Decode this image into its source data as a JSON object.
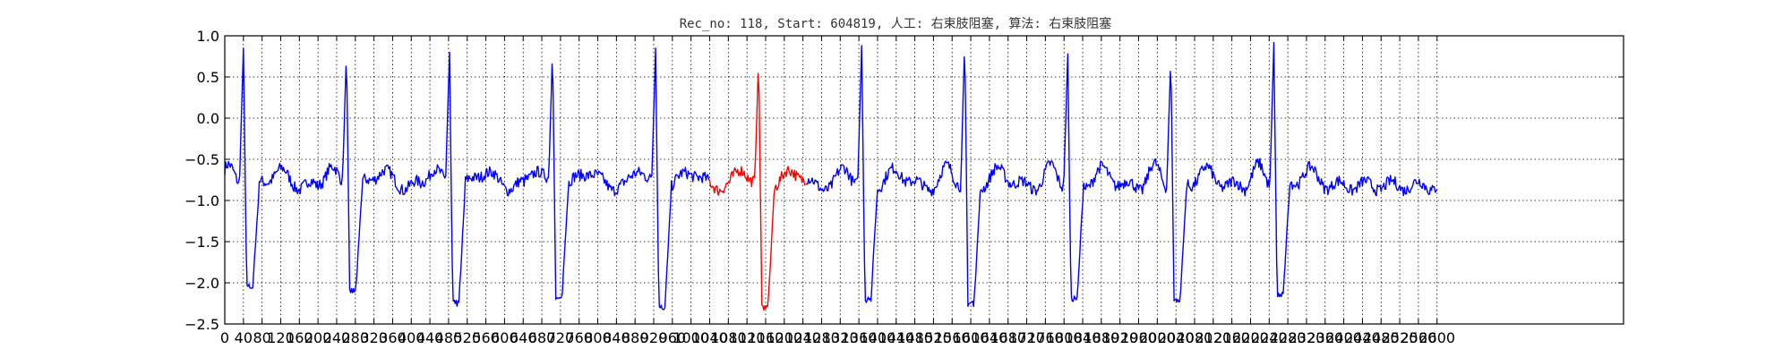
{
  "chart_data": {
    "type": "line",
    "title": "Rec_no: 118, Start: 604819, 人工: 右束肢阻塞, 算法: 右束肢阻塞",
    "xlabel": "",
    "ylabel": "",
    "xlim": [
      0,
      3000
    ],
    "ylim": [
      -2.5,
      1.0
    ],
    "yticks": [
      1.0,
      0.5,
      0.0,
      -0.5,
      -1.0,
      -1.5,
      -2.0,
      -2.5
    ],
    "ytick_labels": [
      "1.0",
      "0.5",
      "0.0",
      "−0.5",
      "−1.0",
      "−1.5",
      "−2.0",
      "−2.5"
    ],
    "xticks": [
      0,
      40,
      80,
      120,
      160,
      200,
      240,
      280,
      320,
      360,
      400,
      440,
      480,
      520,
      560,
      600,
      640,
      680,
      720,
      760,
      800,
      840,
      880,
      920,
      960,
      1000,
      1040,
      1080,
      1120,
      1160,
      1200,
      1240,
      1280,
      1320,
      1360,
      1400,
      1440,
      1480,
      1520,
      1560,
      1600,
      1640,
      1680,
      1720,
      1760,
      1800,
      1840,
      1880,
      1920,
      1960,
      2000,
      2040,
      2080,
      2120,
      2160,
      2200,
      2240,
      2280,
      2320,
      2360,
      2400,
      2440,
      2480,
      2520,
      2560,
      2600
    ],
    "xtick_labels": [
      "0",
      "40",
      "80",
      "120",
      "160",
      "200",
      "240",
      "280",
      "320",
      "360",
      "400",
      "440",
      "480",
      "520",
      "560",
      "600",
      "640",
      "680",
      "720",
      "760",
      "800",
      "840",
      "880",
      "920",
      "960",
      "1000",
      "1040",
      "1080",
      "1120",
      "1160",
      "1200",
      "1240",
      "1280",
      "1320",
      "1360",
      "1400",
      "1440",
      "1480",
      "1520",
      "1560",
      "1600",
      "1640",
      "1680",
      "1720",
      "1760",
      "1800",
      "1840",
      "1880",
      "1920",
      "1960",
      "2000",
      "2040",
      "2080",
      "2120",
      "2160",
      "2200",
      "2240",
      "2280",
      "2320",
      "2360",
      "2400",
      "2440",
      "2480",
      "2520",
      "2560",
      "2600"
    ],
    "grid": true,
    "signal": {
      "x_start": 0,
      "x_end": 2600,
      "baseline": -0.82,
      "beats": [
        {
          "x": 40,
          "peak": 0.85,
          "trough": -2.05
        },
        {
          "x": 261,
          "peak": 0.82,
          "trough": -2.1
        },
        {
          "x": 482,
          "peak": 0.8,
          "trough": -2.25
        },
        {
          "x": 703,
          "peak": 0.85,
          "trough": -2.2
        },
        {
          "x": 924,
          "peak": 0.85,
          "trough": -2.3
        },
        {
          "x": 1145,
          "peak": 0.72,
          "trough": -2.3
        },
        {
          "x": 1366,
          "peak": 0.88,
          "trough": -2.2
        },
        {
          "x": 1587,
          "peak": 0.95,
          "trough": -2.25
        },
        {
          "x": 1808,
          "peak": 0.78,
          "trough": -2.2
        },
        {
          "x": 2029,
          "peak": 0.75,
          "trough": -2.2
        },
        {
          "x": 2250,
          "peak": 0.92,
          "trough": -2.15
        }
      ]
    },
    "series": [
      {
        "color": "#0000ff",
        "x_range": [
          0,
          1040
        ]
      },
      {
        "color": "#ff0000",
        "x_range": [
          1040,
          1245
        ]
      },
      {
        "color": "#0000ff",
        "x_range": [
          1245,
          2600
        ]
      }
    ]
  }
}
